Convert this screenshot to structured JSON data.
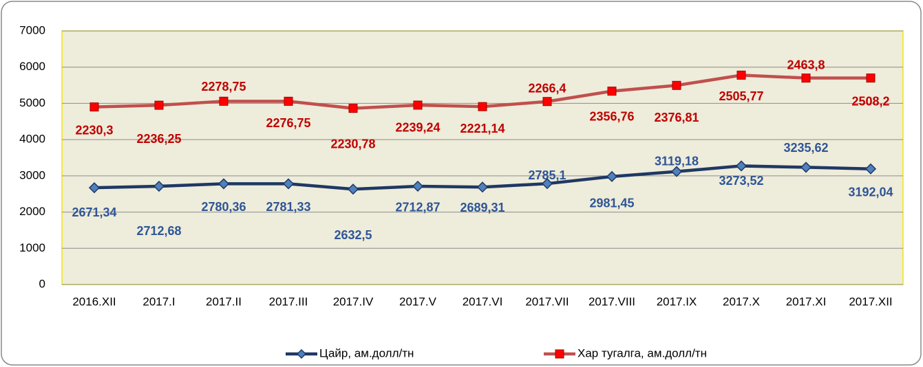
{
  "chart_data": {
    "type": "line",
    "stacked": true,
    "categories": [
      "2016.XII",
      "2017.I",
      "2017.II",
      "2017.III",
      "2017.IV",
      "2017.V",
      "2017.VI",
      "2017.VII",
      "2017.VIII",
      "2017.IX",
      "2017.X",
      "2017.XI",
      "2017.XII"
    ],
    "series": [
      {
        "name": "Цайр, ам.долл/тн",
        "color": "#1f3864",
        "marker": "diamond",
        "marker_color": "#4f81bd",
        "label_color": "#2e5597",
        "values": [
          2671.34,
          2712.68,
          2780.36,
          2781.33,
          2632.5,
          2712.87,
          2689.31,
          2785.1,
          2981.45,
          3119.18,
          3273.52,
          3235.62,
          3192.04
        ],
        "value_labels": [
          "2671,34",
          "2712,68",
          "2780,36",
          "2781,33",
          "2632,5",
          "2712,87",
          "2689,31",
          "2785,1",
          "2981,45",
          "3119,18",
          "3273,52",
          "3235,62",
          "3192,04"
        ]
      },
      {
        "name": "Хар тугалга, ам.долл/тн",
        "color": "#c0504d",
        "marker": "square",
        "marker_color": "#ff0000",
        "label_color": "#c00000",
        "values": [
          2230.3,
          2236.25,
          2278.75,
          2276.75,
          2230.78,
          2239.24,
          2221.14,
          2266.4,
          2356.76,
          2376.81,
          2505.77,
          2463.8,
          2508.2
        ],
        "value_labels": [
          "2230,3",
          "2236,25",
          "2278,75",
          "2276,75",
          "2230,78",
          "2239,24",
          "2221,14",
          "2266,4",
          "2356,76",
          "2376,81",
          "2505,77",
          "2463,8",
          "2508,2"
        ]
      }
    ],
    "ylim": [
      0,
      7000
    ],
    "yticks": [
      0,
      1000,
      2000,
      3000,
      4000,
      5000,
      6000,
      7000
    ],
    "grid": true,
    "legend": "bottom"
  }
}
